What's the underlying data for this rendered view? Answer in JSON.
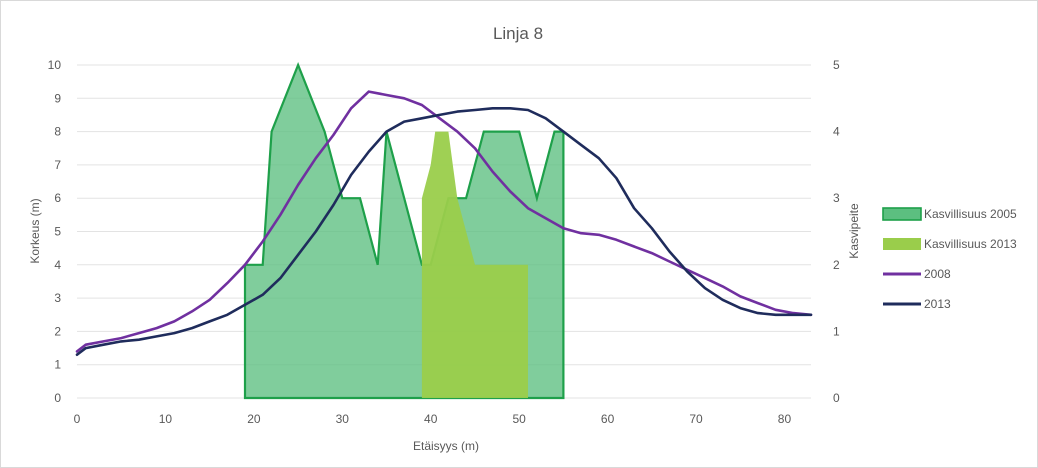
{
  "chart_data": {
    "type": "line",
    "title": "Linja 8",
    "xlabel": "Etäisyys (m)",
    "ylabel": "Korkeus (m)",
    "y2label": "Kasvipeite",
    "xlim": [
      0,
      83
    ],
    "ylim": [
      0,
      10
    ],
    "y2lim": [
      0,
      5
    ],
    "x_ticks": [
      0,
      10,
      20,
      30,
      40,
      50,
      60,
      70,
      80
    ],
    "y_ticks": [
      0,
      1,
      2,
      3,
      4,
      5,
      6,
      7,
      8,
      9,
      10
    ],
    "y2_ticks": [
      0,
      1,
      2,
      3,
      4,
      5
    ],
    "grid": true,
    "legend_position": "right",
    "series": [
      {
        "name": "Kasvillisuus 2005",
        "kind": "area",
        "axis": "y",
        "color": "#5cbf80",
        "edge_color": "#1ea04a",
        "points": [
          [
            19,
            0
          ],
          [
            19,
            4
          ],
          [
            21,
            4
          ],
          [
            22,
            8
          ],
          [
            25,
            10
          ],
          [
            28,
            8
          ],
          [
            30,
            6
          ],
          [
            32,
            6
          ],
          [
            34,
            4
          ],
          [
            35,
            8
          ],
          [
            39,
            4
          ],
          [
            40,
            4
          ],
          [
            42,
            6
          ],
          [
            44,
            6
          ],
          [
            46,
            8
          ],
          [
            50,
            8
          ],
          [
            52,
            6
          ],
          [
            54,
            8
          ],
          [
            55,
            8
          ],
          [
            55,
            0
          ]
        ]
      },
      {
        "name": "Kasvillisuus 2013",
        "kind": "area",
        "axis": "y",
        "color": "#9acd4b",
        "points": [
          [
            39,
            0
          ],
          [
            39,
            6
          ],
          [
            40,
            7
          ],
          [
            40.5,
            8
          ],
          [
            42,
            8
          ],
          [
            42.5,
            7
          ],
          [
            43,
            6
          ],
          [
            44,
            5
          ],
          [
            45,
            4
          ],
          [
            51,
            4
          ],
          [
            51,
            0
          ]
        ]
      },
      {
        "name": "2008",
        "kind": "line",
        "axis": "y",
        "color": "#7030a0",
        "x": [
          0,
          1,
          3,
          5,
          7,
          9,
          11,
          13,
          15,
          17,
          19,
          21,
          23,
          25,
          27,
          29,
          31,
          33,
          35,
          37,
          39,
          41,
          43,
          45,
          47,
          49,
          51,
          53,
          55,
          57,
          59,
          61,
          63,
          65,
          67,
          69,
          71,
          73,
          75,
          77,
          79,
          81,
          83
        ],
        "values": [
          1.4,
          1.6,
          1.7,
          1.8,
          1.95,
          2.1,
          2.3,
          2.6,
          2.95,
          3.45,
          4.0,
          4.7,
          5.5,
          6.4,
          7.2,
          7.9,
          8.7,
          9.2,
          9.1,
          9.0,
          8.8,
          8.4,
          8.0,
          7.5,
          6.8,
          6.2,
          5.7,
          5.4,
          5.1,
          4.95,
          4.9,
          4.75,
          4.55,
          4.35,
          4.1,
          3.85,
          3.6,
          3.35,
          3.05,
          2.85,
          2.65,
          2.55,
          2.5
        ]
      },
      {
        "name": "2013",
        "kind": "line",
        "axis": "y",
        "color": "#1f2c5c",
        "x": [
          0,
          1,
          3,
          5,
          7,
          9,
          11,
          13,
          15,
          17,
          19,
          21,
          23,
          25,
          27,
          29,
          31,
          33,
          35,
          37,
          39,
          41,
          43,
          45,
          47,
          49,
          51,
          53,
          55,
          57,
          59,
          61,
          63,
          65,
          67,
          69,
          71,
          73,
          75,
          77,
          79,
          81,
          83
        ],
        "values": [
          1.3,
          1.5,
          1.6,
          1.7,
          1.75,
          1.85,
          1.95,
          2.1,
          2.3,
          2.5,
          2.8,
          3.1,
          3.6,
          4.3,
          5.0,
          5.8,
          6.7,
          7.4,
          8.0,
          8.3,
          8.4,
          8.5,
          8.6,
          8.65,
          8.7,
          8.7,
          8.65,
          8.4,
          8.0,
          7.6,
          7.2,
          6.6,
          5.7,
          5.1,
          4.4,
          3.8,
          3.3,
          2.95,
          2.7,
          2.55,
          2.5,
          2.5,
          2.5
        ]
      }
    ]
  }
}
